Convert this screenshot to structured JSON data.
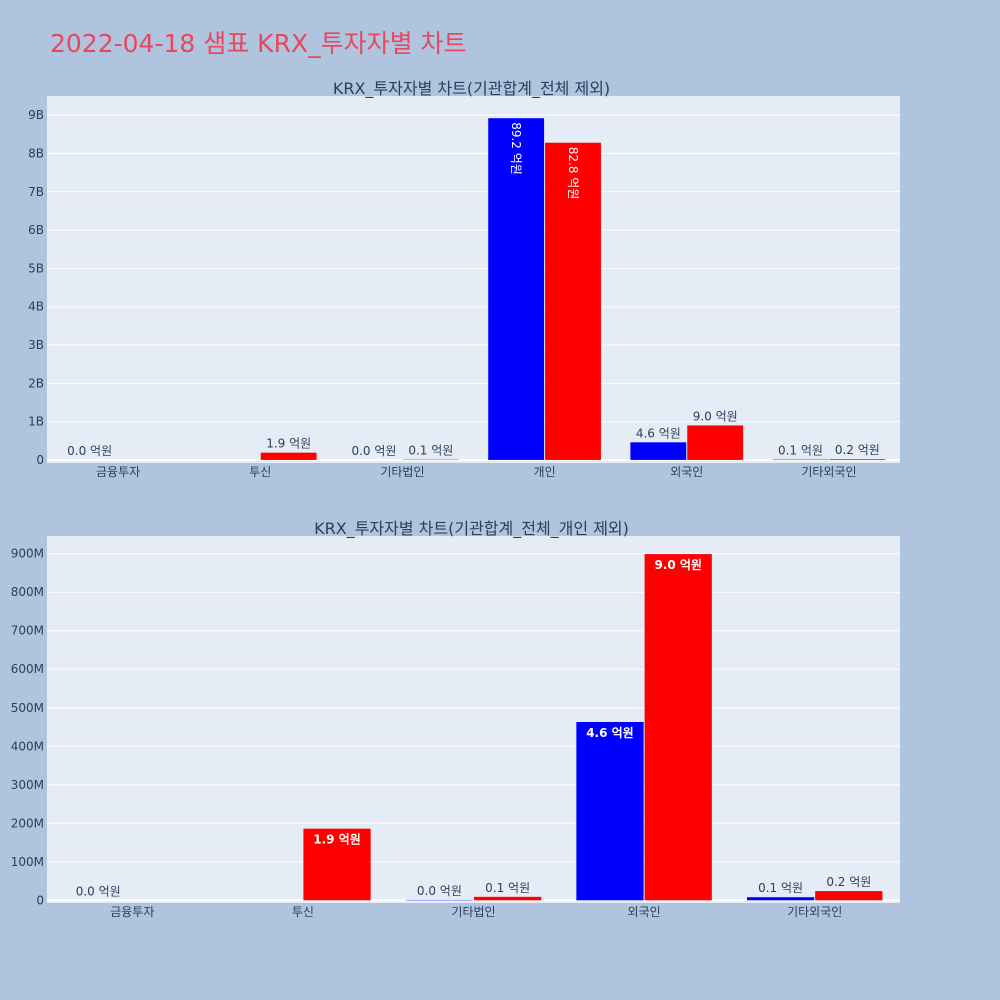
{
  "page": {
    "title": "2022-04-18 샘표 KRX_투자자별 차트",
    "background": "#b0c4de",
    "title_color": "#e8475f"
  },
  "chart_data": [
    {
      "type": "bar",
      "title": "KRX_투자자별 차트(기관합계_전체 제외)",
      "categories": [
        "금융투자",
        "투신",
        "기타법인",
        "개인",
        "외국인",
        "기타외국인"
      ],
      "series": [
        {
          "color": "#0000ff",
          "values": [
            0.0,
            0.0,
            0.0,
            8.92,
            0.46,
            0.01
          ],
          "labels": [
            "0.0 억원",
            "",
            "0.0 억원",
            "89.2 억원",
            "4.6 억원",
            "0.1 억원"
          ]
        },
        {
          "color": "#ff0000",
          "values": [
            0.0,
            0.19,
            0.01,
            8.28,
            0.9,
            0.02
          ],
          "labels": [
            "",
            "1.9 억원",
            "0.1 억원",
            "82.8 억원",
            "9.0 억원",
            "0.2 억원"
          ]
        }
      ],
      "yticks": [
        0,
        1,
        2,
        3,
        4,
        5,
        6,
        7,
        8,
        9
      ],
      "ytick_labels": [
        "0",
        "1B",
        "2B",
        "3B",
        "4B",
        "5B",
        "6B",
        "7B",
        "8B",
        "9B"
      ],
      "ylim": [
        -0.08,
        9.5
      ],
      "grid": true
    },
    {
      "type": "bar",
      "title": "KRX_투자자별 차트(기관합계_전체_개인 제외)",
      "categories": [
        "금융투자",
        "투신",
        "기타법인",
        "외국인",
        "기타외국인"
      ],
      "series": [
        {
          "color": "#0000ff",
          "values": [
            0,
            0,
            1,
            463,
            8
          ],
          "labels": [
            "0.0 억원",
            "",
            "0.0 억원",
            "4.6 억원",
            "0.1 억원"
          ]
        },
        {
          "color": "#ff0000",
          "values": [
            0,
            186,
            9,
            899,
            24
          ],
          "labels": [
            "",
            "1.9 억원",
            "0.1 억원",
            "9.0 억원",
            "0.2 억원"
          ]
        }
      ],
      "yticks": [
        0,
        100,
        200,
        300,
        400,
        500,
        600,
        700,
        800,
        900
      ],
      "ytick_labels": [
        "0",
        "100M",
        "200M",
        "300M",
        "400M",
        "500M",
        "600M",
        "700M",
        "800M",
        "900M"
      ],
      "ylim": [
        -7,
        946
      ],
      "grid": true
    }
  ]
}
